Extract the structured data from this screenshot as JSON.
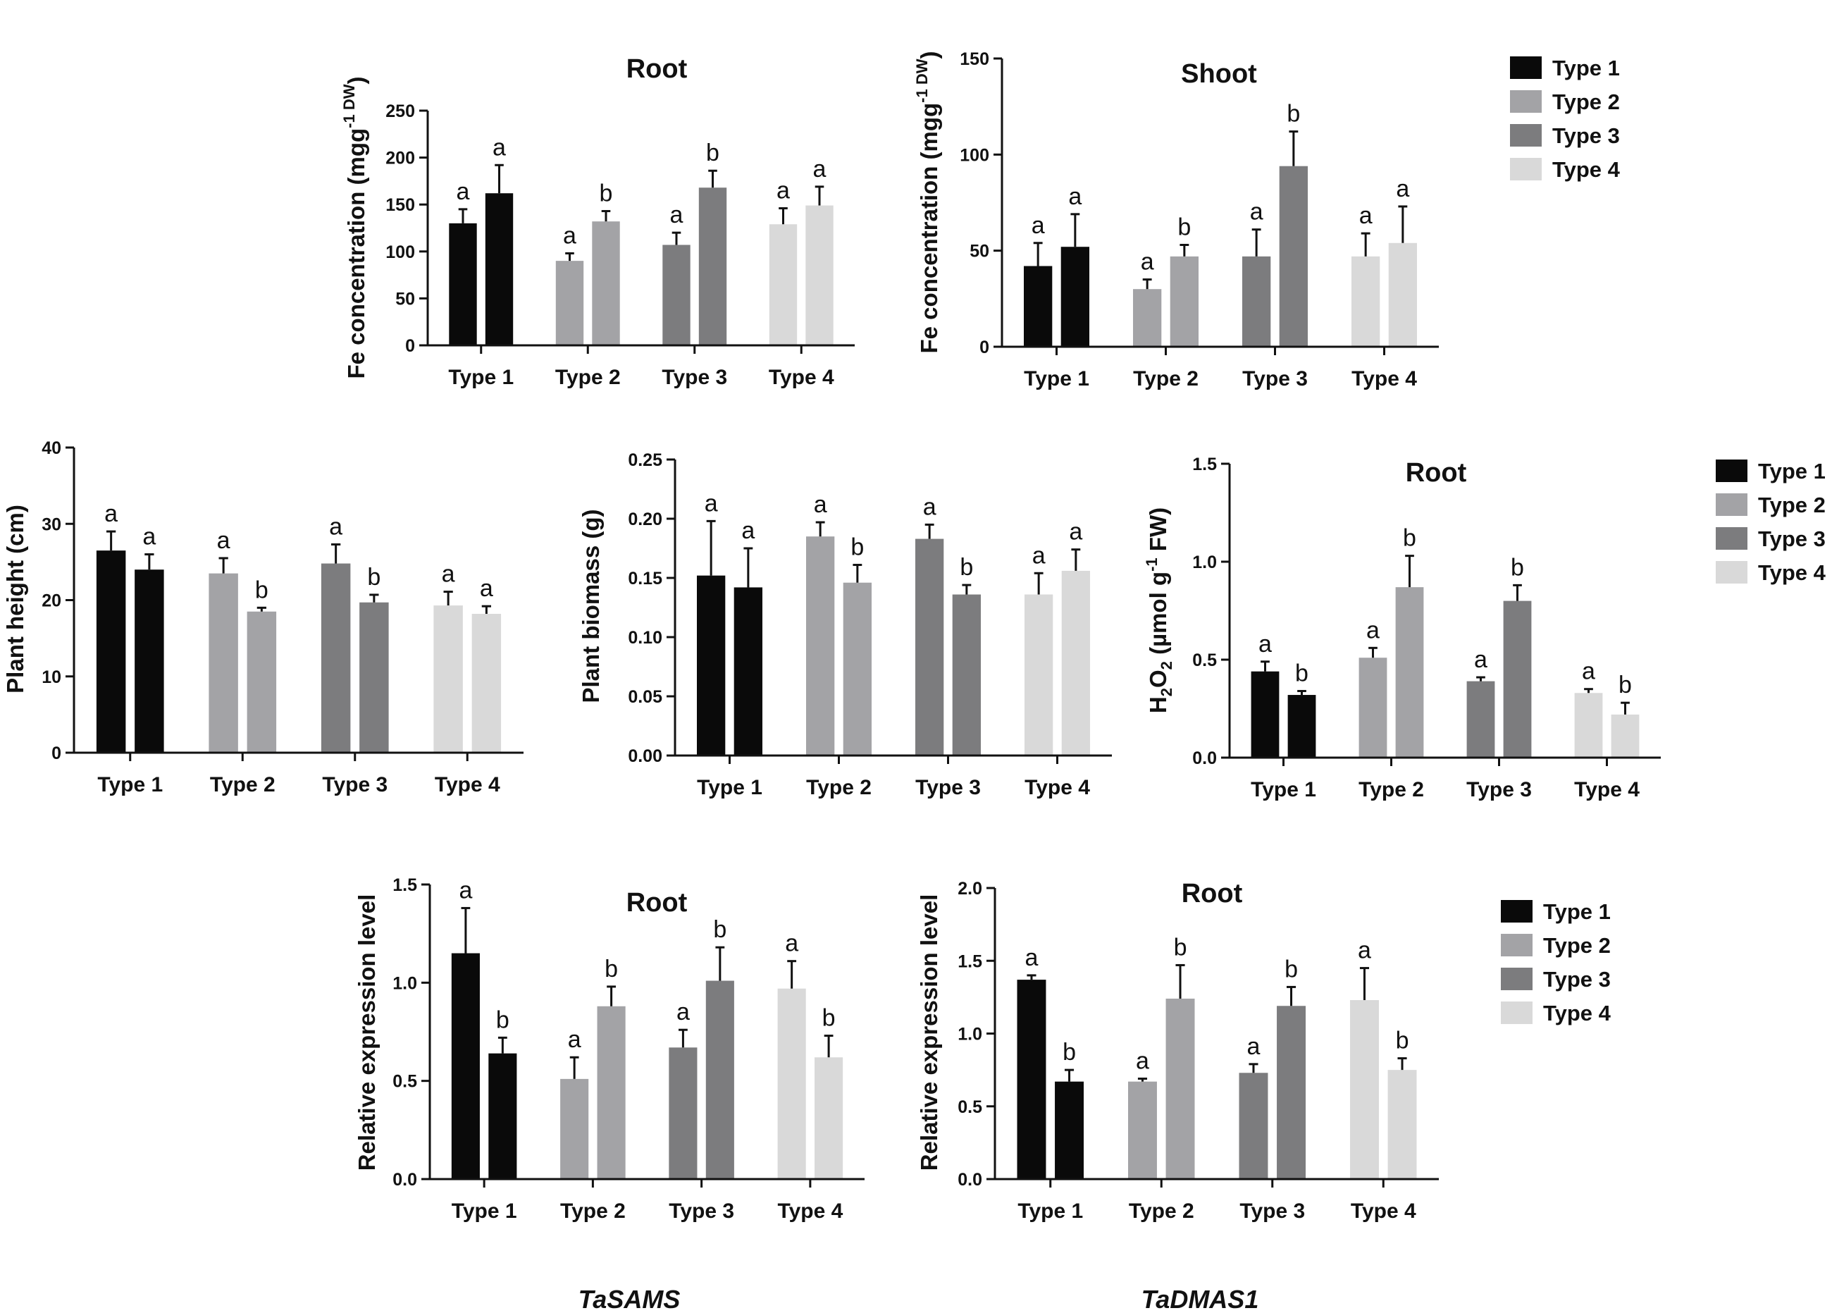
{
  "figure": {
    "colors": {
      "Type 1": "#0a0a0a",
      "Type 2": "#a3a3a6",
      "Type 3": "#7c7c7e",
      "Type 4": "#d9d9d9"
    },
    "legends": [
      {
        "items": [
          "Type 1",
          "Type 2",
          "Type 3",
          "Type 4"
        ]
      },
      {
        "items": [
          "Type 1",
          "Type 2",
          "Type 3",
          "Type 4"
        ]
      },
      {
        "items": [
          "Type 1",
          "Type 2",
          "Type 3",
          "Type 4"
        ]
      }
    ],
    "captions": [
      "TaSAMS",
      "TaDMAS1"
    ]
  },
  "chart_data": [
    {
      "type": "bar",
      "title": "Root",
      "ylabel": "Fe concentration (mgg-1 DW)",
      "ylabel_parts": [
        "Fe concentration (mgg",
        "-1 DW",
        ")"
      ],
      "categories": [
        "Type 1",
        "Type 2",
        "Type 3",
        "Type 4"
      ],
      "ylim": [
        0,
        250
      ],
      "yticks": [
        "0",
        "50",
        "100",
        "150",
        "200",
        "250"
      ],
      "bars": [
        {
          "values": [
            130,
            162
          ],
          "errors": [
            15,
            30
          ],
          "letters": [
            "a",
            "a"
          ]
        },
        {
          "values": [
            90,
            132
          ],
          "errors": [
            8,
            11
          ],
          "letters": [
            "a",
            "b"
          ]
        },
        {
          "values": [
            107,
            168
          ],
          "errors": [
            13,
            18
          ],
          "letters": [
            "a",
            "b"
          ]
        },
        {
          "values": [
            129,
            149
          ],
          "errors": [
            17,
            20
          ],
          "letters": [
            "a",
            "a"
          ]
        }
      ]
    },
    {
      "type": "bar",
      "title": "Shoot",
      "ylabel": "Fe concentration (mgg-1 DW)",
      "ylabel_parts": [
        "Fe concentration (mgg",
        "-1 DW",
        ")"
      ],
      "categories": [
        "Type 1",
        "Type 2",
        "Type 3",
        "Type 4"
      ],
      "ylim": [
        0,
        150
      ],
      "yticks": [
        "0",
        "50",
        "100",
        "150"
      ],
      "bars": [
        {
          "values": [
            42,
            52
          ],
          "errors": [
            12,
            17
          ],
          "letters": [
            "a",
            "a"
          ]
        },
        {
          "values": [
            30,
            47
          ],
          "errors": [
            5,
            6
          ],
          "letters": [
            "a",
            "b"
          ]
        },
        {
          "values": [
            47,
            94
          ],
          "errors": [
            14,
            18
          ],
          "letters": [
            "a",
            "b"
          ]
        },
        {
          "values": [
            47,
            54
          ],
          "errors": [
            12,
            19
          ],
          "letters": [
            "a",
            "a"
          ]
        }
      ]
    },
    {
      "type": "bar",
      "title": "",
      "ylabel": "Plant height (cm)",
      "ylabel_parts": [
        "Plant height (cm)"
      ],
      "categories": [
        "Type 1",
        "Type 2",
        "Type 3",
        "Type 4"
      ],
      "ylim": [
        0,
        40
      ],
      "yticks": [
        "0",
        "10",
        "20",
        "30",
        "40"
      ],
      "bars": [
        {
          "values": [
            26.5,
            24
          ],
          "errors": [
            2.5,
            2
          ],
          "letters": [
            "a",
            "a"
          ]
        },
        {
          "values": [
            23.5,
            18.5
          ],
          "errors": [
            2,
            0.5
          ],
          "letters": [
            "a",
            "b"
          ]
        },
        {
          "values": [
            24.8,
            19.7
          ],
          "errors": [
            2.5,
            1
          ],
          "letters": [
            "a",
            "b"
          ]
        },
        {
          "values": [
            19.3,
            18.2
          ],
          "errors": [
            1.8,
            1
          ],
          "letters": [
            "a",
            "a"
          ]
        }
      ]
    },
    {
      "type": "bar",
      "title": "",
      "ylabel": "Plant biomass (g)",
      "ylabel_parts": [
        "Plant biomass (g)"
      ],
      "categories": [
        "Type 1",
        "Type 2",
        "Type 3",
        "Type 4"
      ],
      "ylim": [
        0,
        0.25
      ],
      "yticks": [
        "0.00",
        "0.05",
        "0.10",
        "0.15",
        "0.20",
        "0.25"
      ],
      "bars": [
        {
          "values": [
            0.152,
            0.142
          ],
          "errors": [
            0.046,
            0.033
          ],
          "letters": [
            "a",
            "a"
          ]
        },
        {
          "values": [
            0.185,
            0.146
          ],
          "errors": [
            0.012,
            0.015
          ],
          "letters": [
            "a",
            "b"
          ]
        },
        {
          "values": [
            0.183,
            0.136
          ],
          "errors": [
            0.012,
            0.008
          ],
          "letters": [
            "a",
            "b"
          ]
        },
        {
          "values": [
            0.136,
            0.156
          ],
          "errors": [
            0.018,
            0.018
          ],
          "letters": [
            "a",
            "a"
          ]
        }
      ]
    },
    {
      "type": "bar",
      "title": "Root",
      "ylabel": "H2O2 (µmol g-1 FW)",
      "ylabel_parts": [
        "H",
        "2",
        "O",
        "2",
        " (µmol g",
        "-1",
        " FW)"
      ],
      "categories": [
        "Type 1",
        "Type 2",
        "Type 3",
        "Type 4"
      ],
      "ylim": [
        0,
        1.5
      ],
      "yticks": [
        "0.0",
        "0.5",
        "1.0",
        "1.5"
      ],
      "bars": [
        {
          "values": [
            0.44,
            0.32
          ],
          "errors": [
            0.05,
            0.02
          ],
          "letters": [
            "a",
            "b"
          ]
        },
        {
          "values": [
            0.51,
            0.87
          ],
          "errors": [
            0.05,
            0.16
          ],
          "letters": [
            "a",
            "b"
          ]
        },
        {
          "values": [
            0.39,
            0.8
          ],
          "errors": [
            0.02,
            0.08
          ],
          "letters": [
            "a",
            "b"
          ]
        },
        {
          "values": [
            0.33,
            0.22
          ],
          "errors": [
            0.02,
            0.06
          ],
          "letters": [
            "a",
            "b"
          ]
        }
      ]
    },
    {
      "type": "bar",
      "title": "Root",
      "ylabel": "Relative expression level",
      "ylabel_parts": [
        "Relative expression level"
      ],
      "categories": [
        "Type 1",
        "Type 2",
        "Type 3",
        "Type 4"
      ],
      "ylim": [
        0,
        1.5
      ],
      "yticks": [
        "0.0",
        "0.5",
        "1.0",
        "1.5"
      ],
      "bars": [
        {
          "values": [
            1.15,
            0.64
          ],
          "errors": [
            0.23,
            0.08
          ],
          "letters": [
            "a",
            "b"
          ]
        },
        {
          "values": [
            0.51,
            0.88
          ],
          "errors": [
            0.11,
            0.1
          ],
          "letters": [
            "a",
            "b"
          ]
        },
        {
          "values": [
            0.67,
            1.01
          ],
          "errors": [
            0.09,
            0.17
          ],
          "letters": [
            "a",
            "b"
          ]
        },
        {
          "values": [
            0.97,
            0.62
          ],
          "errors": [
            0.14,
            0.11
          ],
          "letters": [
            "a",
            "b"
          ]
        }
      ]
    },
    {
      "type": "bar",
      "title": "Root",
      "ylabel": "Relative expression level",
      "ylabel_parts": [
        "Relative expression level"
      ],
      "categories": [
        "Type 1",
        "Type 2",
        "Type 3",
        "Type 4"
      ],
      "ylim": [
        0,
        2.0
      ],
      "yticks": [
        "0.0",
        "0.5",
        "1.0",
        "1.5",
        "2.0"
      ],
      "bars": [
        {
          "values": [
            1.37,
            0.67
          ],
          "errors": [
            0.03,
            0.08
          ],
          "letters": [
            "a",
            "b"
          ]
        },
        {
          "values": [
            0.67,
            1.24
          ],
          "errors": [
            0.02,
            0.23
          ],
          "letters": [
            "a",
            "b"
          ]
        },
        {
          "values": [
            0.73,
            1.19
          ],
          "errors": [
            0.06,
            0.13
          ],
          "letters": [
            "a",
            "b"
          ]
        },
        {
          "values": [
            1.23,
            0.75
          ],
          "errors": [
            0.22,
            0.08
          ],
          "letters": [
            "a",
            "b"
          ]
        }
      ]
    }
  ]
}
